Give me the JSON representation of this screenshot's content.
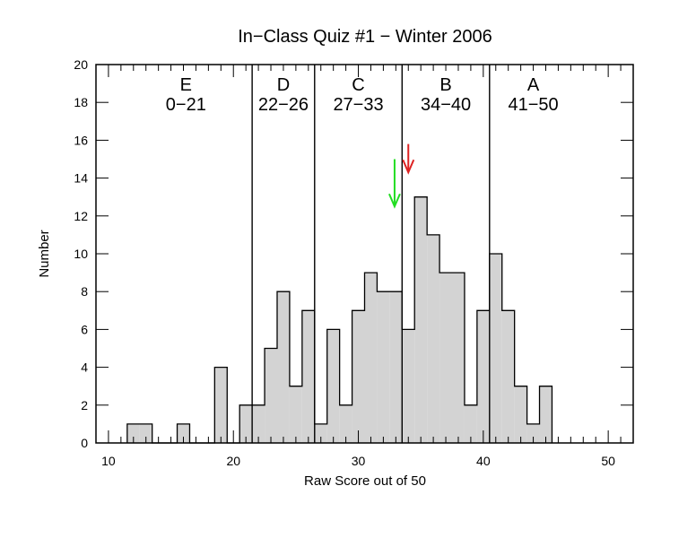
{
  "chart_data": {
    "type": "bar",
    "title": "In−Class Quiz #1 − Winter 2006",
    "xlabel": "Raw Score out of 50",
    "ylabel": "Number",
    "xlim": [
      9,
      52
    ],
    "ylim": [
      0,
      20
    ],
    "xticks": [
      10,
      20,
      30,
      40,
      50
    ],
    "yticks": [
      0,
      2,
      4,
      6,
      8,
      10,
      12,
      14,
      16,
      18,
      20
    ],
    "bin_width": 1,
    "bins": [
      {
        "x": 12,
        "count": 1
      },
      {
        "x": 13,
        "count": 1
      },
      {
        "x": 14,
        "count": 0
      },
      {
        "x": 15,
        "count": 0
      },
      {
        "x": 16,
        "count": 1
      },
      {
        "x": 17,
        "count": 0
      },
      {
        "x": 18,
        "count": 0
      },
      {
        "x": 19,
        "count": 4
      },
      {
        "x": 20,
        "count": 0
      },
      {
        "x": 21,
        "count": 2
      },
      {
        "x": 22,
        "count": 2
      },
      {
        "x": 23,
        "count": 5
      },
      {
        "x": 24,
        "count": 8
      },
      {
        "x": 25,
        "count": 3
      },
      {
        "x": 26,
        "count": 7
      },
      {
        "x": 27,
        "count": 1
      },
      {
        "x": 28,
        "count": 6
      },
      {
        "x": 29,
        "count": 2
      },
      {
        "x": 30,
        "count": 7
      },
      {
        "x": 31,
        "count": 9
      },
      {
        "x": 32,
        "count": 8
      },
      {
        "x": 33,
        "count": 8
      },
      {
        "x": 34,
        "count": 6
      },
      {
        "x": 35,
        "count": 13
      },
      {
        "x": 36,
        "count": 11
      },
      {
        "x": 37,
        "count": 9
      },
      {
        "x": 38,
        "count": 9
      },
      {
        "x": 39,
        "count": 2
      },
      {
        "x": 40,
        "count": 7
      },
      {
        "x": 41,
        "count": 10
      },
      {
        "x": 42,
        "count": 7
      },
      {
        "x": 43,
        "count": 3
      },
      {
        "x": 44,
        "count": 1
      },
      {
        "x": 45,
        "count": 3
      }
    ],
    "grade_boundaries": [
      21.5,
      26.5,
      33.5,
      40.5
    ],
    "grade_regions": [
      {
        "letter": "E",
        "range": "0−21",
        "center": 16.2
      },
      {
        "letter": "D",
        "range": "22−26",
        "center": 24.0
      },
      {
        "letter": "C",
        "range": "27−33",
        "center": 30.0
      },
      {
        "letter": "B",
        "range": "34−40",
        "center": 37.0
      },
      {
        "letter": "A",
        "range": "41−50",
        "center": 44.0
      }
    ],
    "markers": [
      {
        "x": 34.0,
        "y_top": 15.8,
        "y_bottom": 14.3,
        "color": "#dd2222"
      },
      {
        "x": 32.9,
        "y_top": 15.0,
        "y_bottom": 12.5,
        "color": "#22dd22"
      }
    ],
    "bar_fill": "#d3d3d3",
    "legend": "none",
    "grid": false
  }
}
